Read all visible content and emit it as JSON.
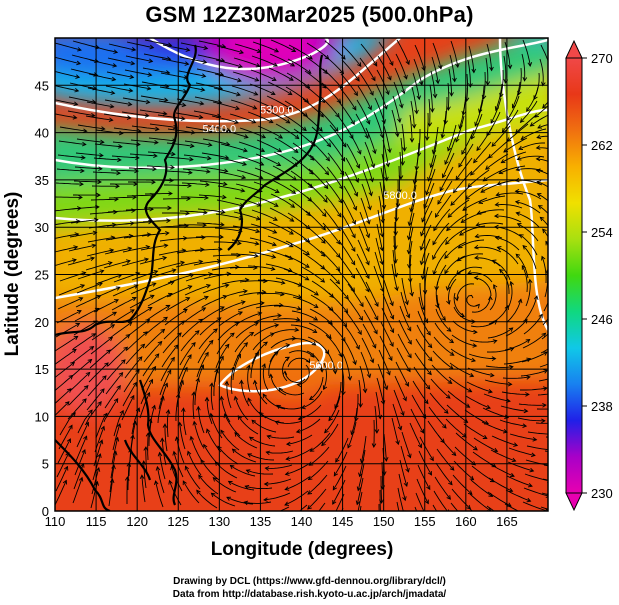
{
  "chart_data": {
    "type": "heatmap",
    "title": "GSM 12Z30Mar2025 (500.0hPa)",
    "xlabel": "Longitude (degrees)",
    "ylabel": "Latitude  (degrees)",
    "xlim": [
      110,
      170
    ],
    "ylim": [
      0,
      50
    ],
    "x_ticks": [
      110,
      115,
      120,
      125,
      130,
      135,
      140,
      145,
      150,
      155,
      160,
      165
    ],
    "y_ticks": [
      0,
      5,
      10,
      15,
      20,
      25,
      30,
      35,
      40,
      45
    ],
    "variable": "temperature (K), height contours, wind streamlines",
    "colorbar": {
      "min": 230,
      "max": 270,
      "tick_values": [
        230,
        238,
        246,
        254,
        262,
        270
      ],
      "tick_labels": [
        "230",
        "238",
        "246",
        "254",
        "262",
        "270"
      ],
      "colors": [
        "#e800b0",
        "#a800c8",
        "#2020e8",
        "#1880f0",
        "#10c8e8",
        "#10d880",
        "#40d810",
        "#a8e010",
        "#f0e000",
        "#f8b000",
        "#f07010",
        "#e83818",
        "#f04848"
      ]
    },
    "contour_labels": [
      {
        "text": "5300.0",
        "lon": 137,
        "lat": 42
      },
      {
        "text": "5400.0",
        "lon": 130,
        "lat": 40
      },
      {
        "text": "5800.0",
        "lon": 152,
        "lat": 33
      },
      {
        "text": "5600.0",
        "lon": 143,
        "lat": 15
      }
    ]
  },
  "credits": {
    "line1": "Drawing by DCL (https://www.gfd-dennou.org/library/dcl/)",
    "line2": "Data from http://database.rish.kyoto-u.ac.jp/arch/jmadata/"
  }
}
